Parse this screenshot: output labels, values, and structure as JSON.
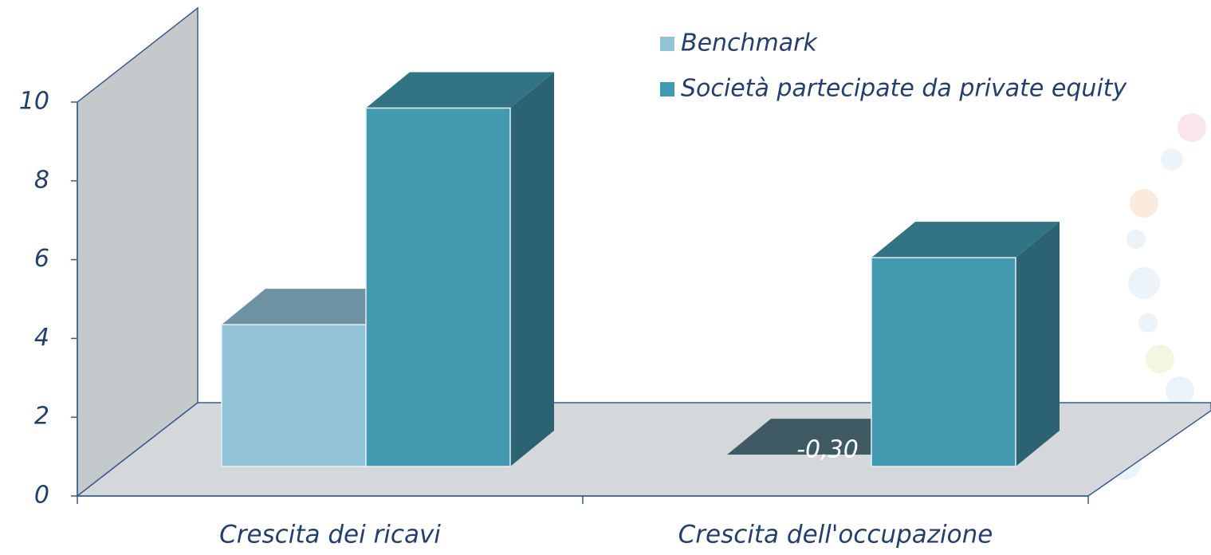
{
  "chart_data": {
    "type": "bar3d",
    "categories": [
      "Crescita dei ricavi",
      "Crescita dell'occupazione"
    ],
    "series": [
      {
        "name": "Benchmark",
        "color": "#93c3d6",
        "values": [
          3.6,
          -0.3
        ],
        "value_labels": [
          null,
          "-0,30"
        ]
      },
      {
        "name": "Società partecipate da private equity",
        "color": "#4299b0",
        "values": [
          9.1,
          5.3
        ]
      }
    ],
    "ylim": [
      0,
      10
    ],
    "yticks": [
      0,
      2,
      4,
      6,
      8,
      10
    ]
  }
}
